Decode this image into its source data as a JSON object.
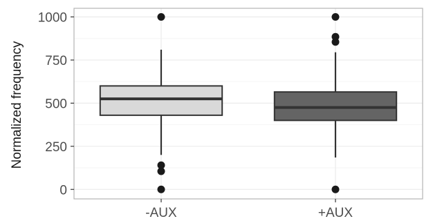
{
  "chart_data": {
    "type": "boxplot",
    "title": "",
    "xlabel": "",
    "ylabel": "Normalized frequency",
    "ylim": [
      -55,
      1050
    ],
    "yticks": [
      0,
      250,
      500,
      750,
      1000
    ],
    "grid": true,
    "categories": [
      "-AUX",
      "+AUX"
    ],
    "boxes": [
      {
        "category": "-AUX",
        "fill": "#d9d9d9",
        "q1": 430,
        "median": 525,
        "q3": 600,
        "whisker_low": 200,
        "whisker_high": 810,
        "outliers": [
          0,
          105,
          140,
          1000
        ]
      },
      {
        "category": "+AUX",
        "fill": "#646464",
        "q1": 400,
        "median": 475,
        "q3": 565,
        "whisker_low": 185,
        "whisker_high": 795,
        "outliers": [
          0,
          855,
          885,
          1000
        ]
      }
    ],
    "colors": {
      "panel_border": "#b3b3b3",
      "grid_major": "#ebebeb",
      "grid_minor": "#f5f5f5",
      "box_outline": "#333333",
      "points": "#1a1a1a"
    }
  }
}
